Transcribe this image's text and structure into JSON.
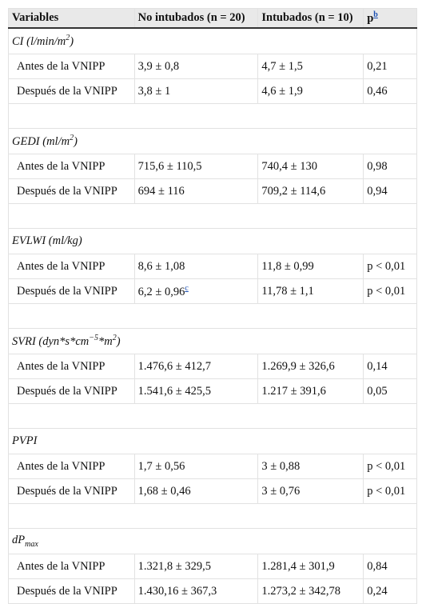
{
  "table": {
    "header": [
      "Variables",
      "No intubados (n = 20)",
      "Intubados (n = 10)",
      [
        {
          "text": "p"
        },
        {
          "text": "b",
          "style": "sup",
          "link": true
        }
      ]
    ],
    "groups": [
      {
        "label": [
          {
            "text": "CI (l/min/m"
          },
          {
            "text": "2",
            "style": "sup"
          },
          {
            "text": ")"
          }
        ],
        "rows": [
          [
            "Antes de la VNIPP",
            "3,9 ± 0,8",
            "4,7 ± 1,5",
            "0,21"
          ],
          [
            "Después de la VNIPP",
            "3,8 ± 1",
            "4,6 ± 1,9",
            "0,46"
          ]
        ]
      },
      {
        "label": [
          {
            "text": "GEDI (ml/m"
          },
          {
            "text": "2",
            "style": "sup"
          },
          {
            "text": ")"
          }
        ],
        "rows": [
          [
            "Antes de la VNIPP",
            "715,6 ± 110,5",
            "740,4 ± 130",
            "0,98"
          ],
          [
            "Después de la VNIPP",
            "694 ± 116",
            "709,2 ± 114,6",
            "0,94"
          ]
        ]
      },
      {
        "label": [
          {
            "text": "EVLWI (ml/kg)"
          }
        ],
        "rows": [
          [
            "Antes de la VNIPP",
            "8,6 ± 1,08",
            "11,8 ± 0,99",
            "p < 0,01"
          ],
          [
            "Después de la VNIPP",
            [
              {
                "text": "6,2 ± 0,96"
              },
              {
                "text": "c",
                "style": "sup",
                "link": true
              }
            ],
            "11,78 ± 1,1",
            "p < 0,01"
          ]
        ]
      },
      {
        "label": [
          {
            "text": "SVRI (dyn*s*cm"
          },
          {
            "text": "−5",
            "style": "sup"
          },
          {
            "text": "*m"
          },
          {
            "text": "2",
            "style": "sup"
          },
          {
            "text": ")"
          }
        ],
        "rows": [
          [
            "Antes de la VNIPP",
            "1.476,6 ± 412,7",
            "1.269,9 ± 326,6",
            "0,14"
          ],
          [
            "Después de la VNIPP",
            "1.541,6 ± 425,5",
            "1.217 ± 391,6",
            "0,05"
          ]
        ]
      },
      {
        "label": [
          {
            "text": "PVPI"
          }
        ],
        "rows": [
          [
            "Antes de la VNIPP",
            "1,7 ± 0,56",
            "3 ± 0,88",
            "p < 0,01"
          ],
          [
            "Después de la VNIPP",
            "1,68 ± 0,46",
            "3 ± 0,76",
            "p < 0,01"
          ]
        ]
      },
      {
        "label": [
          {
            "text": "dP"
          },
          {
            "text": "max",
            "style": "sub"
          }
        ],
        "rows": [
          [
            "Antes de la VNIPP",
            "1.321,8 ± 329,5",
            "1.281,4 ± 301,9",
            "0,84"
          ],
          [
            "Después de la VNIPP",
            "1.430,16 ± 367,3",
            "1.273,2 ± 342,78",
            "0,24"
          ]
        ]
      }
    ]
  }
}
